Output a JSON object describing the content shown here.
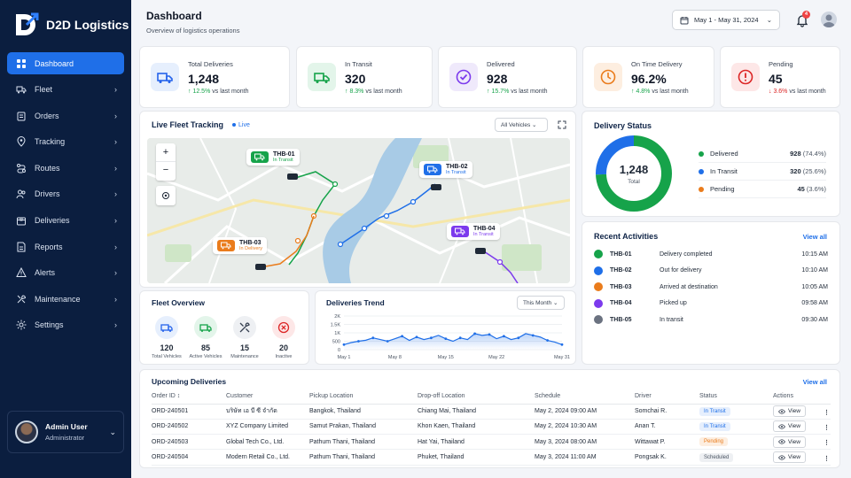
{
  "brand": {
    "name": "D2D Logistics"
  },
  "sidebar": {
    "items": [
      {
        "label": "Dashboard",
        "icon": "grid-icon"
      },
      {
        "label": "Fleet",
        "icon": "truck-icon"
      },
      {
        "label": "Orders",
        "icon": "clipboard-icon"
      },
      {
        "label": "Tracking",
        "icon": "location-pin-icon"
      },
      {
        "label": "Routes",
        "icon": "route-icon"
      },
      {
        "label": "Drivers",
        "icon": "users-icon"
      },
      {
        "label": "Deliveries",
        "icon": "package-icon"
      },
      {
        "label": "Reports",
        "icon": "report-icon"
      },
      {
        "label": "Alerts",
        "icon": "alert-icon"
      },
      {
        "label": "Maintenance",
        "icon": "wrench-icon"
      },
      {
        "label": "Settings",
        "icon": "gear-icon"
      }
    ],
    "user": {
      "name": "Admin User",
      "role": "Administrator"
    }
  },
  "header": {
    "title": "Dashboard",
    "subtitle": "Overview of logistics operations",
    "date_range": "May 1 - May 31, 2024",
    "notification_count": "4"
  },
  "kpis": [
    {
      "label": "Total Deliveries",
      "value": "1,248",
      "delta": "↑ 12.5%",
      "delta_text": "vs last month",
      "trend": "up",
      "color": "#2563eb",
      "bg": "#e6effd"
    },
    {
      "label": "In Transit",
      "value": "320",
      "delta": "↑ 8.3%",
      "delta_text": "vs last month",
      "trend": "up",
      "color": "#16a34a",
      "bg": "#e3f5ea"
    },
    {
      "label": "Delivered",
      "value": "928",
      "delta": "↑ 15.7%",
      "delta_text": "vs last month",
      "trend": "up",
      "color": "#7c3aed",
      "bg": "#efe9fb"
    },
    {
      "label": "On Time Delivery",
      "value": "96.2%",
      "delta": "↑ 4.8%",
      "delta_text": "vs last month",
      "trend": "up",
      "color": "#ea7c1c",
      "bg": "#fdeee0"
    },
    {
      "label": "Pending",
      "value": "45",
      "delta": "↓ 3.6%",
      "delta_text": "vs last month",
      "trend": "down",
      "color": "#dc2626",
      "bg": "#fde7e7"
    }
  ],
  "tracking": {
    "title": "Live Fleet Tracking",
    "live_label": "Live",
    "filter": "All Vehicles",
    "vehicles": [
      {
        "id": "THB-01",
        "status": "In Transit",
        "color": "#16a34a"
      },
      {
        "id": "THB-02",
        "status": "In Transit",
        "color": "#1f6fe8"
      },
      {
        "id": "THB-03",
        "status": "In Delivery",
        "color": "#ea7c1c"
      },
      {
        "id": "THB-04",
        "status": "In Transit",
        "color": "#7c3aed"
      }
    ]
  },
  "delivery_status": {
    "title": "Delivery Status",
    "total_value": "1,248",
    "total_label": "Total",
    "items": [
      {
        "label": "Delivered",
        "value": "928",
        "pct": "(74.4%)",
        "color": "#16a34a",
        "share": 74.4
      },
      {
        "label": "In Transit",
        "value": "320",
        "pct": "(25.6%)",
        "color": "#1f6fe8",
        "share": 25.6
      },
      {
        "label": "Pending",
        "value": "45",
        "pct": "(3.6%)",
        "color": "#ea7c1c",
        "share": 3.6
      }
    ]
  },
  "activities": {
    "title": "Recent Activities",
    "view_all": "View all",
    "items": [
      {
        "id": "THB-01",
        "text": "Delivery completed",
        "time": "10:15 AM",
        "color": "#16a34a"
      },
      {
        "id": "THB-02",
        "text": "Out for delivery",
        "time": "10:10 AM",
        "color": "#1f6fe8"
      },
      {
        "id": "THB-03",
        "text": "Arrived at destination",
        "time": "10:05 AM",
        "color": "#ea7c1c"
      },
      {
        "id": "THB-04",
        "text": "Picked up",
        "time": "09:58 AM",
        "color": "#7c3aed"
      },
      {
        "id": "THB-05",
        "text": "In transit",
        "time": "09:30 AM",
        "color": "#6b7280"
      }
    ]
  },
  "fleet_overview": {
    "title": "Fleet Overview",
    "items": [
      {
        "value": "120",
        "label": "Total Vehicles",
        "color": "#2563eb",
        "bg": "#e6effd"
      },
      {
        "value": "85",
        "label": "Active Vehicles",
        "color": "#16a34a",
        "bg": "#e3f5ea"
      },
      {
        "value": "15",
        "label": "Maintenance",
        "color": "#374151",
        "bg": "#eef0f3"
      },
      {
        "value": "20",
        "label": "Inactive",
        "color": "#dc2626",
        "bg": "#fde7e7"
      }
    ]
  },
  "trend": {
    "title": "Deliveries Trend",
    "filter": "This Month"
  },
  "chart_data": {
    "type": "area",
    "x": [
      "May 1",
      "May 2",
      "May 3",
      "May 4",
      "May 5",
      "May 6",
      "May 7",
      "May 8",
      "May 9",
      "May 10",
      "May 11",
      "May 12",
      "May 13",
      "May 14",
      "May 15",
      "May 16",
      "May 17",
      "May 18",
      "May 19",
      "May 20",
      "May 21",
      "May 22",
      "May 23",
      "May 24",
      "May 25",
      "May 26",
      "May 27",
      "May 28",
      "May 29",
      "May 30",
      "May 31"
    ],
    "x_tick_labels": [
      "May 1",
      "May 8",
      "May 15",
      "May 22",
      "May 31"
    ],
    "values": [
      300,
      420,
      500,
      560,
      700,
      600,
      500,
      650,
      800,
      550,
      750,
      600,
      700,
      850,
      650,
      500,
      700,
      600,
      950,
      850,
      900,
      650,
      800,
      600,
      700,
      950,
      850,
      750,
      550,
      450,
      300
    ],
    "y_ticks": [
      "0",
      "500",
      "1K",
      "1.5K",
      "2K"
    ],
    "ylim": [
      0,
      2000
    ],
    "color": "#1f6fe8"
  },
  "upcoming": {
    "title": "Upcoming Deliveries",
    "view_all": "View all",
    "columns": [
      "Order ID ↕",
      "Customer",
      "Pickup Location",
      "Drop-off Location",
      "Schedule",
      "Driver",
      "Status",
      "Actions"
    ],
    "rows": [
      {
        "order": "ORD-240501",
        "customer": "บริษัท เอ บี ซี จำกัด",
        "pickup": "Bangkok, Thailand",
        "dropoff": "Chiang Mai, Thailand",
        "schedule": "May 2, 2024 09:00 AM",
        "driver": "Somchai R.",
        "status": "In Transit",
        "status_color": "#1f6fe8",
        "status_bg": "#e6effd",
        "action": "View"
      },
      {
        "order": "ORD-240502",
        "customer": "XYZ Company Limited",
        "pickup": "Samut Prakan, Thailand",
        "dropoff": "Khon Kaen, Thailand",
        "schedule": "May 2, 2024 10:30 AM",
        "driver": "Anan T.",
        "status": "In Transit",
        "status_color": "#1f6fe8",
        "status_bg": "#e6effd",
        "action": "View"
      },
      {
        "order": "ORD-240503",
        "customer": "Global Tech Co., Ltd.",
        "pickup": "Pathum Thani, Thailand",
        "dropoff": "Hat Yai, Thailand",
        "schedule": "May 3, 2024 08:00 AM",
        "driver": "Wittawat P.",
        "status": "Pending",
        "status_color": "#ea7c1c",
        "status_bg": "#fdeee0",
        "action": "View"
      },
      {
        "order": "ORD-240504",
        "customer": "Modern Retail Co., Ltd.",
        "pickup": "Pathum Thani, Thailand",
        "dropoff": "Phuket, Thailand",
        "schedule": "May 3, 2024 11:00 AM",
        "driver": "Pongsak K.",
        "status": "Scheduled",
        "status_color": "#4b5563",
        "status_bg": "#eef0f3",
        "action": "View"
      }
    ]
  }
}
